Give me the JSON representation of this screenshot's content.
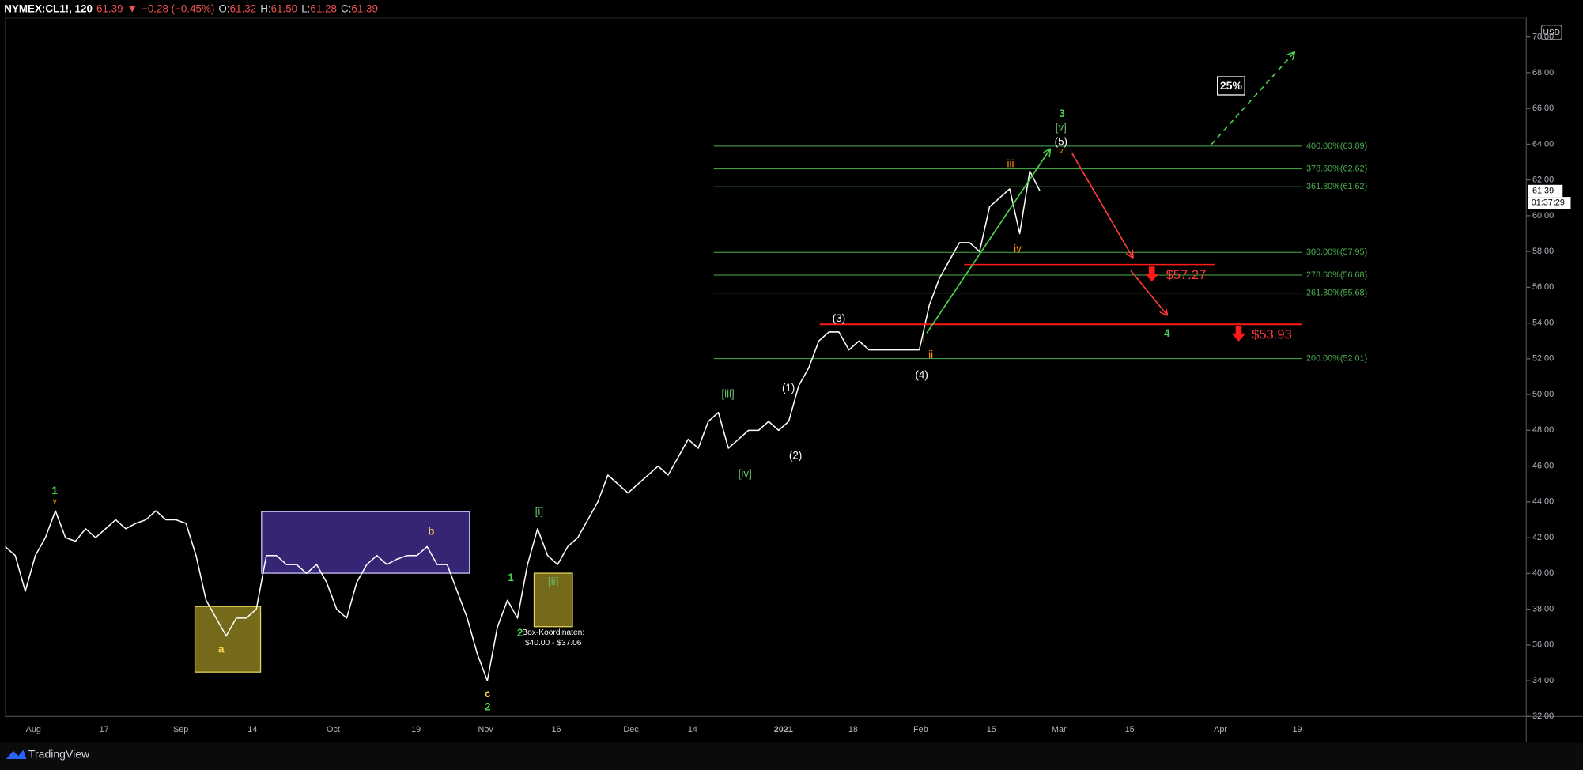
{
  "header": {
    "symbol": "NYMEX:CL1!, 120",
    "last": "61.39",
    "arrow": "▼",
    "change": "−0.28 (−0.45%)",
    "ohlc": [
      {
        "label": "O:",
        "value": "61.32"
      },
      {
        "label": "H:",
        "value": "61.50"
      },
      {
        "label": "L:",
        "value": "61.28"
      },
      {
        "label": "C:",
        "value": "61.39"
      }
    ]
  },
  "price_axis": {
    "currency": "USD",
    "ticks": [
      {
        "value": 70,
        "label": "70.00"
      },
      {
        "value": 68,
        "label": "68.00"
      },
      {
        "value": 66,
        "label": "66.00"
      },
      {
        "value": 64,
        "label": "64.00"
      },
      {
        "value": 62,
        "label": "62.00"
      },
      {
        "value": 60,
        "label": "60.00"
      },
      {
        "value": 58,
        "label": "58.00"
      },
      {
        "value": 56,
        "label": "56.00"
      },
      {
        "value": 54,
        "label": "54.00"
      },
      {
        "value": 52,
        "label": "52.00"
      },
      {
        "value": 50,
        "label": "50.00"
      },
      {
        "value": 48,
        "label": "48.00"
      },
      {
        "value": 46,
        "label": "46.00"
      },
      {
        "value": 44,
        "label": "44.00"
      },
      {
        "value": 42,
        "label": "42.00"
      },
      {
        "value": 40,
        "label": "40.00"
      },
      {
        "value": 38,
        "label": "38.00"
      },
      {
        "value": 36,
        "label": "36.00"
      },
      {
        "value": 34,
        "label": "34.00"
      },
      {
        "value": 32,
        "label": "32.00"
      }
    ],
    "last_price": {
      "value": 61.39,
      "label": "61.39"
    },
    "countdown": "01:37:29"
  },
  "time_axis": [
    "Aug",
    "17",
    "Sep",
    "14",
    "Oct",
    "19",
    "Nov",
    "16",
    "Dec",
    "14",
    "2021",
    "18",
    "Feb",
    "15",
    "Mar",
    "15",
    "Apr",
    "19"
  ],
  "price_series": [
    41.5,
    41,
    39,
    41,
    42,
    43.5,
    42,
    41.8,
    42.5,
    42,
    42.5,
    43,
    42.5,
    42.8,
    43,
    43.5,
    43,
    43,
    42.8,
    41,
    38.5,
    37.5,
    36.5,
    37.5,
    37.5,
    38,
    41,
    41,
    40.5,
    40.5,
    40,
    40.5,
    39.5,
    38,
    37.5,
    39.5,
    40.5,
    41,
    40.5,
    40.8,
    41,
    41,
    41.5,
    40.5,
    40.5,
    39,
    37.5,
    35.5,
    34,
    37,
    38.5,
    37.5,
    40.5,
    42.5,
    41,
    40.5,
    41.5,
    42,
    43,
    44,
    45.5,
    45,
    44.5,
    45,
    45.5,
    46,
    45.5,
    46.5,
    47.5,
    47,
    48.5,
    49,
    47,
    47.5,
    48,
    48,
    48.5,
    48,
    48.5,
    50.5,
    51.5,
    53,
    53.5,
    53.5,
    52.5,
    53,
    52.5,
    52.5,
    52.5,
    52.5,
    52.5,
    52.5,
    55,
    56.5,
    57.5,
    58.5,
    58.5,
    58,
    60.5,
    61,
    61.5,
    59,
    62.5,
    61.4
  ],
  "fib_levels": [
    {
      "label": "400.00%(63.89)",
      "value": 63.89
    },
    {
      "label": "378.60%(62.62)",
      "value": 62.62
    },
    {
      "label": "361.80%(61.62)",
      "value": 61.62
    },
    {
      "label": "300.00%(57.95)",
      "value": 57.95
    },
    {
      "label": "278.60%(56.68)",
      "value": 56.68
    },
    {
      "label": "261.80%(55.68)",
      "value": 55.68
    },
    {
      "label": "200.00%(52.01)",
      "value": 52.01
    }
  ],
  "targets": [
    {
      "label": "$57.27",
      "value": 57.27
    },
    {
      "label": "$53.93",
      "value": 53.93
    }
  ],
  "wave_labels": [
    {
      "text": "1",
      "color": "#4cd14c"
    },
    {
      "text": "v",
      "color": "#ff9800"
    },
    {
      "text": "a",
      "color": "#ffd54f"
    },
    {
      "text": "b",
      "color": "#ffd54f"
    },
    {
      "text": "c",
      "color": "#ffd54f"
    },
    {
      "text": "2",
      "color": "#4cd14c"
    },
    {
      "text": "1",
      "color": "#4cd14c"
    },
    {
      "text": "2",
      "color": "#4cd14c"
    },
    {
      "text": "[i]",
      "color": "#66bb6a"
    },
    {
      "text": "[ii]",
      "color": "#66bb6a"
    },
    {
      "text": "[iii]",
      "color": "#66bb6a"
    },
    {
      "text": "[iv]",
      "color": "#66bb6a"
    },
    {
      "text": "(1)",
      "color": "#ffffff"
    },
    {
      "text": "(2)",
      "color": "#ffffff"
    },
    {
      "text": "(3)",
      "color": "#ffffff"
    },
    {
      "text": "(4)",
      "color": "#ffffff"
    },
    {
      "text": "i",
      "color": "#ff9800"
    },
    {
      "text": "ii",
      "color": "#ff9800"
    },
    {
      "text": "iii",
      "color": "#ff9800"
    },
    {
      "text": "iv",
      "color": "#ff9800"
    },
    {
      "text": "(5)",
      "color": "#ffffff"
    },
    {
      "text": "[v]",
      "color": "#66bb6a"
    },
    {
      "text": "3",
      "color": "#4cd14c"
    },
    {
      "text": "v",
      "color": "#ff9800"
    },
    {
      "text": "4",
      "color": "#4cd14c"
    }
  ],
  "box_note": [
    "Box-Koordinaten:",
    "$40.00 - $37.06"
  ],
  "percent_badge": "25%",
  "footer": "TradingView"
}
